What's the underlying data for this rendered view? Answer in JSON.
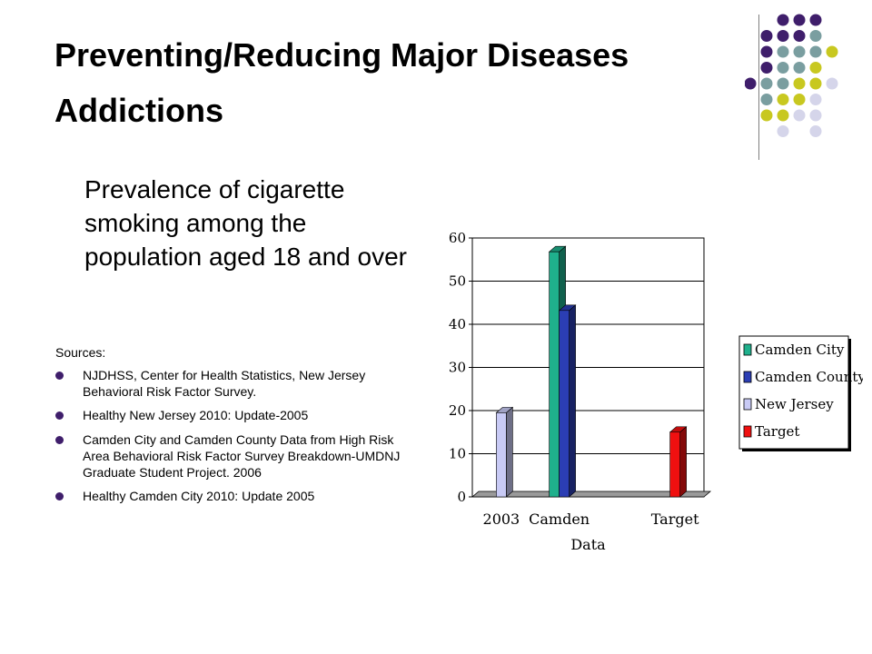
{
  "slide": {
    "title_line1": "Preventing/Reducing Major Diseases",
    "title_line2": "Addictions",
    "subtitle": "Prevalence of cigarette smoking among the population aged 18 and over",
    "sources_label": "Sources:",
    "sources": [
      "NJDHSS, Center for Health Statistics, New Jersey Behavioral Risk Factor Survey.",
      "Healthy New Jersey 2010: Update-2005",
      "Camden City and Camden County Data from High Risk Area Behavioral Risk Factor Survey Breakdown-UMDNJ Graduate Student Project. 2006",
      "Healthy Camden City 2010: Update 2005"
    ]
  },
  "colors": {
    "bullet": "#3f1e6b",
    "dot_palette": [
      "#3f1e6b",
      "#7a9ea0",
      "#c8c820",
      "#d5d5ea"
    ]
  },
  "chart_data": {
    "type": "bar",
    "categories": [
      "2003",
      "Camden",
      "",
      "Target"
    ],
    "xlabel": "Data",
    "ylabel": "",
    "ylim": [
      0,
      60
    ],
    "yticks": [
      0,
      10,
      20,
      30,
      40,
      50,
      60
    ],
    "grid": true,
    "legend_position": "right",
    "series": [
      {
        "name": "Camden City",
        "color": "#1fb08c",
        "values": [
          null,
          56.8,
          null,
          null
        ]
      },
      {
        "name": "Camden County",
        "color": "#2b3eb4",
        "values": [
          null,
          43.2,
          null,
          null
        ]
      },
      {
        "name": "New Jersey",
        "color": "#c8caf5",
        "values": [
          19.5,
          null,
          null,
          null
        ]
      },
      {
        "name": "Target",
        "color": "#f01010",
        "values": [
          null,
          null,
          null,
          15
        ]
      }
    ]
  }
}
